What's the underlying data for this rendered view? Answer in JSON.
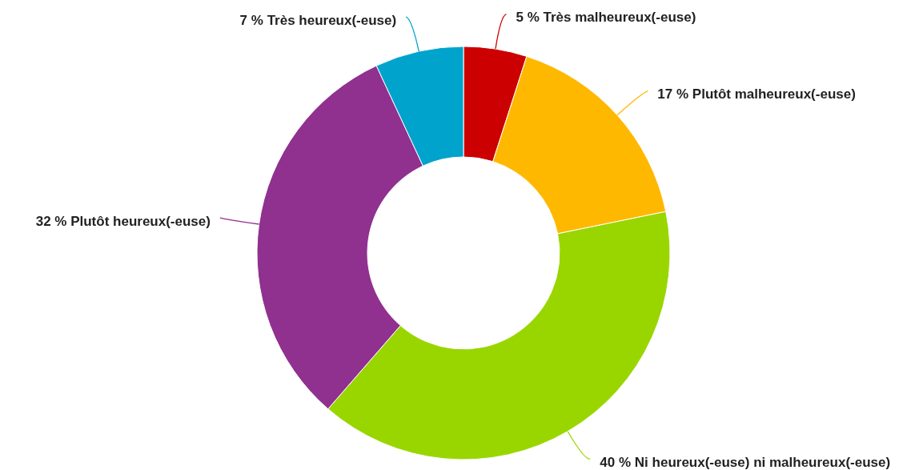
{
  "chart_data": {
    "type": "donut",
    "categories": [
      "Très malheureux(-euse)",
      "Plutôt malheureux(-euse)",
      "Ni heureux(-euse) ni malheureux(-euse)",
      "Plutôt heureux(-euse)",
      "Très heureux(-euse)"
    ],
    "values": [
      5,
      17,
      40,
      32,
      7
    ],
    "colors": [
      "#cc0000",
      "#ffb800",
      "#99d600",
      "#90308f",
      "#00a3cc"
    ],
    "value_labels": [
      "5 %",
      "17 %",
      "40 %",
      "32 %",
      "7 %"
    ]
  }
}
